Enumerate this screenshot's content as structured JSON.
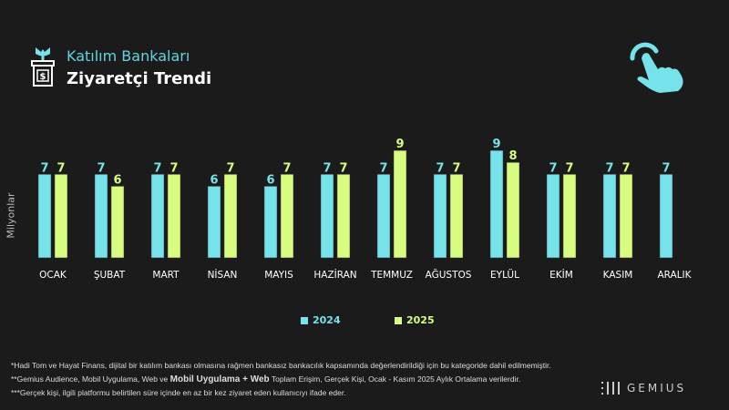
{
  "header": {
    "title": "Katılım Bankaları",
    "subtitle": "Ziyaretçi Trendi"
  },
  "colors": {
    "series_2024": "#76e3ea",
    "series_2025": "#d8fc7f",
    "background": "#1b1b1b",
    "title_accent": "#5fd6df"
  },
  "icons": {
    "logo": "plant-money-box-icon",
    "top_right": "tap-hand-icon"
  },
  "chart_data": {
    "type": "bar",
    "ylabel": "Milyonlar",
    "categories": [
      "OCAK",
      "ŞUBAT",
      "MART",
      "NİSAN",
      "MAYIS",
      "HAZİRAN",
      "TEMMUZ",
      "AĞUSTOS",
      "EYLÜL",
      "EKİM",
      "KASIM",
      "ARALIK"
    ],
    "series": [
      {
        "name": "2024",
        "values": [
          7,
          7,
          7,
          6,
          6,
          7,
          7,
          7,
          9,
          7,
          7,
          7
        ]
      },
      {
        "name": "2025",
        "values": [
          7,
          6,
          7,
          7,
          7,
          7,
          9,
          7,
          8,
          7,
          7,
          null
        ]
      }
    ],
    "legend": "bottom-center",
    "grid": false
  },
  "footnotes": {
    "n1": "*Hadi Tom ve  Hayat Finans, dijital bir katılım bankası olmasına rağmen bankasız bankacılık kapsamında değerlendirildiği için bu kategoride dahil edilmemiştir.",
    "n2_a": "**Gemius Audience, Mobil Uygulama, Web ve ",
    "n2_b": "Mobil Uygulama + Web",
    "n2_c": " Toplam Erişim, Gerçek Kişi, Ocak -  Kasım  2025 Aylık Ortalama verilerdir.",
    "n3": "***Gerçek kişi, ilgili platformu belirtilen süre içinde en az bir kez ziyaret eden kullanıcıyı ifade eder."
  },
  "brand": {
    "name": "GEMIUS"
  }
}
